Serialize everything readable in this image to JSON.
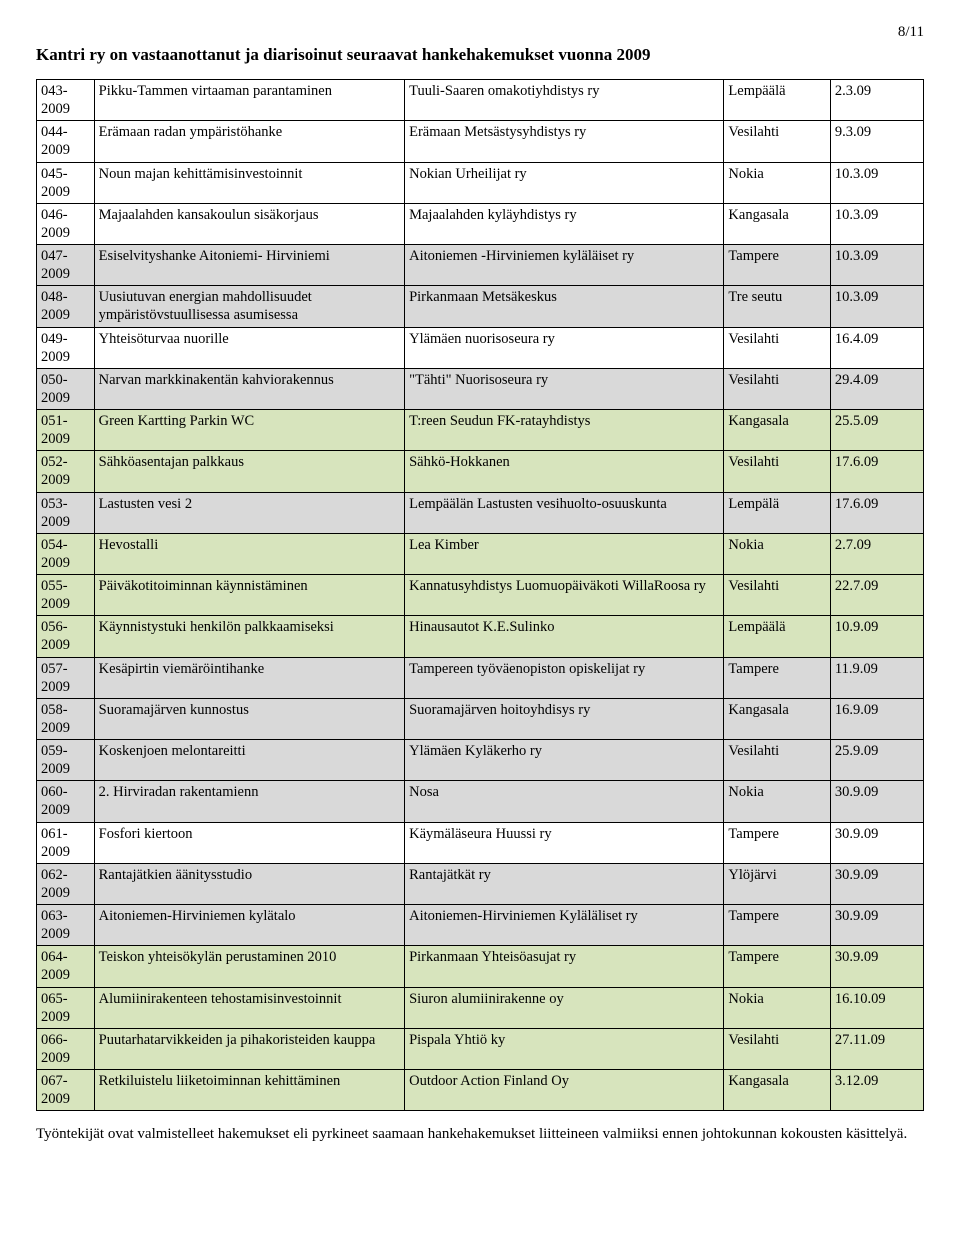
{
  "pageNumber": "8/11",
  "title": "Kantri ry on vastaanottanut ja diarisoinut seuraavat hankehakemukset vuonna 2009",
  "footer": "Työntekijät ovat valmistelleet hakemukset eli pyrkineet saamaan hankehakemukset liitteineen valmiiksi ennen johtokunnan kokousten käsittelyä.",
  "columns": {
    "widths": [
      "6.5%",
      "35%",
      "36%",
      "12%",
      "10.5%"
    ]
  },
  "rowStyle": {
    "font_family": "Times New Roman",
    "font_size_pt": 11,
    "border_color": "#000000",
    "text_color": "#000000"
  },
  "colorMap": {
    "none": "#ffffff",
    "grey": "#d9d9d9",
    "green": "#d7e4bd"
  },
  "rows": [
    {
      "id": "043-2009",
      "c1": "Pikku-Tammen virtaaman parantaminen",
      "c2": "Tuuli-Saaren omakotiyhdistys ry",
      "c3": "Lempäälä",
      "c4": "2.3.09",
      "bg": "none"
    },
    {
      "id": "044-2009",
      "c1": "Erämaan radan ympäristöhanke",
      "c2": "Erämaan Metsästysyhdistys ry",
      "c3": "Vesilahti",
      "c4": "9.3.09",
      "bg": "none"
    },
    {
      "id": "045-2009",
      "c1": "Noun majan  kehittämisinvestoinnit",
      "c2": "Nokian Urheilijat ry",
      "c3": "Nokia",
      "c4": "10.3.09",
      "bg": "none"
    },
    {
      "id": "046-2009",
      "c1": "Majaalahden kansakoulun sisäkorjaus",
      "c2": "Majaalahden kyläyhdistys ry",
      "c3": "Kangasala",
      "c4": "10.3.09",
      "bg": "none"
    },
    {
      "id": "047-2009",
      "c1": "Esiselvityshanke Aitoniemi- Hirviniemi",
      "c2": "Aitoniemen -Hirviniemen kyläläiset ry",
      "c3": "Tampere",
      "c4": "10.3.09",
      "bg": "grey"
    },
    {
      "id": "048-2009",
      "c1": "Uusiutuvan energian mahdollisuudet ympäristövstuullisessa asumisessa",
      "c2": "Pirkanmaan Metsäkeskus",
      "c3": "Tre seutu",
      "c4": "10.3.09",
      "bg": "grey"
    },
    {
      "id": "049-2009",
      "c1": "Yhteisöturvaa nuorille",
      "c2": "Ylämäen nuorisoseura ry",
      "c3": "Vesilahti",
      "c4": "16.4.09",
      "bg": "none"
    },
    {
      "id": "050-2009",
      "c1": "Narvan markkinakentän kahviorakennus",
      "c2": "\"Tähti\" Nuorisoseura ry",
      "c3": "Vesilahti",
      "c4": "29.4.09",
      "bg": "grey"
    },
    {
      "id": "051-2009",
      "c1": "Green Kartting Parkin WC",
      "c2": "T:reen Seudun FK-ratayhdistys",
      "c3": "Kangasala",
      "c4": "25.5.09",
      "bg": "green"
    },
    {
      "id": "052-2009",
      "c1": "Sähköasentajan palkkaus",
      "c2": "Sähkö-Hokkanen",
      "c3": "Vesilahti",
      "c4": "17.6.09",
      "bg": "green"
    },
    {
      "id": "053-2009",
      "c1": "Lastusten vesi 2",
      "c2": "Lempäälän Lastusten vesihuolto-osuuskunta",
      "c3": "Lempälä",
      "c4": "17.6.09",
      "bg": "grey"
    },
    {
      "id": "054-2009",
      "c1": "Hevostalli",
      "c2": "Lea Kimber",
      "c3": "Nokia",
      "c4": "2.7.09",
      "bg": "green"
    },
    {
      "id": "055-2009",
      "c1": "Päiväkotitoiminnan käynnistäminen",
      "c2": "Kannatusyhdistys Luomuopäiväkoti WillaRoosa ry",
      "c3": "Vesilahti",
      "c4": "22.7.09",
      "bg": "green"
    },
    {
      "id": "056-2009",
      "c1": "Käynnistystuki henkilön palkkaamiseksi",
      "c2": "Hinausautot K.E.Sulinko",
      "c3": "Lempäälä",
      "c4": "10.9.09",
      "bg": "green"
    },
    {
      "id": "057-2009",
      "c1": "Kesäpirtin viemäröintihanke",
      "c2": "Tampereen työväenopiston opiskelijat ry",
      "c3": "Tampere",
      "c4": "11.9.09",
      "bg": "grey"
    },
    {
      "id": "058-2009",
      "c1": "Suoramajärven kunnostus",
      "c2": "Suoramajärven hoitoyhdisys ry",
      "c3": "Kangasala",
      "c4": "16.9.09",
      "bg": "grey"
    },
    {
      "id": "059-2009",
      "c1": "Koskenjoen melontareitti",
      "c2": "Ylämäen Kyläkerho ry",
      "c3": "Vesilahti",
      "c4": "25.9.09",
      "bg": "grey"
    },
    {
      "id": "060-2009",
      "c1": "2. Hirviradan rakentamienn",
      "c2": "Nosa",
      "c3": "Nokia",
      "c4": "30.9.09",
      "bg": "grey"
    },
    {
      "id": "061-2009",
      "c1": "Fosfori kiertoon",
      "c2": "Käymäläseura Huussi ry",
      "c3": "Tampere",
      "c4": "30.9.09",
      "bg": "none"
    },
    {
      "id": "062-2009",
      "c1": "Rantajätkien äänitysstudio",
      "c2": "Rantajätkät ry",
      "c3": "Ylöjärvi",
      "c4": "30.9.09",
      "bg": "grey"
    },
    {
      "id": "063-2009",
      "c1": "Aitoniemen-Hirviniemen kylätalo",
      "c2": "Aitoniemen-Hirviniemen Kyläläliset ry",
      "c3": "Tampere",
      "c4": "30.9.09",
      "bg": "grey"
    },
    {
      "id": "064-2009",
      "c1": "Teiskon yhteisökylän perustaminen 2010",
      "c2": "Pirkanmaan Yhteisöasujat ry",
      "c3": "Tampere",
      "c4": "30.9.09",
      "bg": "green"
    },
    {
      "id": "065-2009",
      "c1": "Alumiinirakenteen tehostamisinvestoinnit",
      "c2": "Siuron alumiinirakenne oy",
      "c3": "Nokia",
      "c4": "16.10.09",
      "bg": "green"
    },
    {
      "id": "066-2009",
      "c1": "Puutarhatarvikkeiden ja pihakoristeiden kauppa",
      "c2": "Pispala Yhtiö ky",
      "c3": "Vesilahti",
      "c4": "27.11.09",
      "bg": "green"
    },
    {
      "id": "067-2009",
      "c1": "Retkiluistelu liiketoiminnan kehittäminen",
      "c2": "Outdoor Action Finland Oy",
      "c3": "Kangasala",
      "c4": "3.12.09",
      "bg": "green"
    }
  ]
}
